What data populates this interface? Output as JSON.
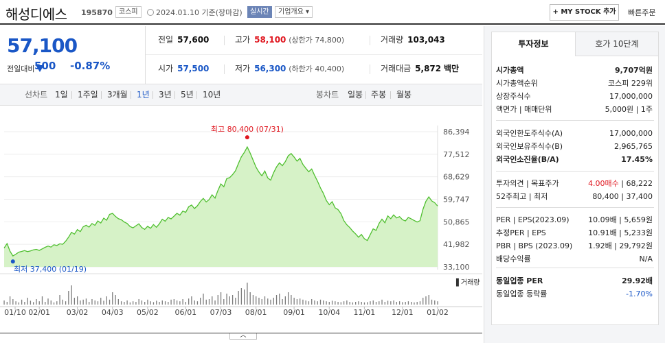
{
  "header": {
    "company_name": "해성디에스",
    "stock_code": "195870",
    "market_tag": "코스피",
    "date_text": "2024.01.10 기준(장마감)",
    "realtime_label": "실시간",
    "company_overview": "기업개요 ▾",
    "my_stock_button": "+ MY STOCK 추가",
    "quick_order": "빠른주문"
  },
  "price": {
    "current": "57,100",
    "change_label": "전일대비",
    "change_value": "500",
    "change_percent": "-0.87%",
    "direction": "down"
  },
  "stats": {
    "prev_close_label": "전일",
    "prev_close": "57,600",
    "high_label": "고가",
    "high": "58,100",
    "upper_limit": "(상한가 74,800)",
    "volume_label": "거래량",
    "volume": "103,043",
    "open_label": "시가",
    "open": "57,500",
    "low_label": "저가",
    "low": "56,300",
    "lower_limit": "(하한가 40,400)",
    "value_label": "거래대금",
    "value": "5,872",
    "value_unit": "백만"
  },
  "tabs": {
    "line_label": "선차트",
    "line_periods": [
      "1일",
      "1주일",
      "3개월",
      "1년",
      "3년",
      "5년",
      "10년"
    ],
    "active_period": "1년",
    "candle_label": "봉차트",
    "candle_periods": [
      "일봉",
      "주봉",
      "월봉"
    ]
  },
  "chart_data": {
    "type": "area",
    "y_ticks": [
      "86,394",
      "77,512",
      "68,629",
      "59,747",
      "50,865",
      "41,982",
      "33,100"
    ],
    "ylim": [
      33100,
      86394
    ],
    "x_ticks": [
      "01/10",
      "02/01",
      "03/02",
      "04/03",
      "05/02",
      "06/01",
      "07/03",
      "08/01",
      "09/01",
      "10/04",
      "11/01",
      "12/01",
      "01/02"
    ],
    "max_annotation": "최고 80,400 (07/31)",
    "min_annotation": "최저 37,400 (01/19)",
    "volume_label": "거래량",
    "color": "#4fbf2f",
    "fill_color": "#d6f2c7",
    "values": [
      40500,
      42300,
      39300,
      37400,
      38100,
      38900,
      39200,
      39500,
      39100,
      39400,
      39800,
      40000,
      39600,
      40200,
      40800,
      41300,
      40900,
      41800,
      41500,
      42200,
      42000,
      43200,
      44800,
      46700,
      46000,
      47800,
      47000,
      48900,
      49500,
      48800,
      50200,
      49500,
      51200,
      50400,
      52300,
      51500,
      53800,
      54200,
      53000,
      52100,
      51700,
      50800,
      50200,
      49000,
      48500,
      49300,
      50100,
      48600,
      47900,
      49100,
      48300,
      49800,
      48700,
      50100,
      51900,
      51100,
      52600,
      52000,
      53100,
      54200,
      53500,
      55100,
      54600,
      56800,
      57500,
      56100,
      57200,
      58900,
      60100,
      58700,
      59600,
      61500,
      60200,
      63200,
      65800,
      64700,
      67900,
      68300,
      69500,
      71000,
      73900,
      76500,
      78200,
      80400,
      78000,
      75200,
      72400,
      70500,
      69000,
      70900,
      68200,
      67300,
      70200,
      72500,
      74100,
      73000,
      74600,
      76900,
      77800,
      76400,
      74800,
      75900,
      73500,
      72000,
      70600,
      71700,
      69200,
      66900,
      64200,
      62100,
      59300,
      57600,
      58800,
      56400,
      55700,
      54100,
      51300,
      49700,
      48600,
      47200,
      46100,
      44800,
      45900,
      44200,
      43500,
      45800,
      48100,
      47500,
      50200,
      51900,
      50500,
      53200,
      52100,
      53600,
      52400,
      52900,
      51700,
      51200,
      52600,
      52000,
      51400,
      50800,
      51300,
      55800,
      58900,
      60700,
      59100,
      58400,
      57100
    ],
    "volume_heights": [
      0.15,
      0.1,
      0.3,
      0.2,
      0.12,
      0.08,
      0.18,
      0.1,
      0.25,
      0.14,
      0.09,
      0.2,
      0.12,
      0.3,
      0.1,
      0.22,
      0.15,
      0.08,
      0.12,
      0.35,
      0.18,
      0.12,
      0.5,
      0.7,
      0.25,
      0.3,
      0.15,
      0.18,
      0.22,
      0.1,
      0.2,
      0.15,
      0.12,
      0.25,
      0.14,
      0.3,
      0.18,
      0.45,
      0.35,
      0.2,
      0.12,
      0.1,
      0.15,
      0.08,
      0.12,
      0.1,
      0.2,
      0.15,
      0.1,
      0.18,
      0.12,
      0.09,
      0.14,
      0.1,
      0.15,
      0.12,
      0.1,
      0.18,
      0.2,
      0.15,
      0.12,
      0.2,
      0.1,
      0.22,
      0.3,
      0.15,
      0.12,
      0.25,
      0.4,
      0.18,
      0.2,
      0.3,
      0.15,
      0.35,
      0.45,
      0.2,
      0.4,
      0.3,
      0.35,
      0.25,
      0.5,
      0.6,
      0.55,
      0.8,
      0.45,
      0.35,
      0.3,
      0.25,
      0.2,
      0.3,
      0.22,
      0.18,
      0.25,
      0.35,
      0.4,
      0.2,
      0.3,
      0.45,
      0.35,
      0.25,
      0.2,
      0.22,
      0.18,
      0.15,
      0.12,
      0.2,
      0.15,
      0.12,
      0.18,
      0.15,
      0.12,
      0.1,
      0.14,
      0.12,
      0.1,
      0.09,
      0.12,
      0.15,
      0.1,
      0.08,
      0.1,
      0.12,
      0.1,
      0.08,
      0.09,
      0.12,
      0.15,
      0.1,
      0.12,
      0.18,
      0.1,
      0.14,
      0.12,
      0.15,
      0.1,
      0.12,
      0.09,
      0.1,
      0.12,
      0.1,
      0.08,
      0.1,
      0.12,
      0.25,
      0.3,
      0.35,
      0.18,
      0.15,
      0.12
    ]
  },
  "info_panel": {
    "tab_active": "투자정보",
    "tab_other": "호가 10단계",
    "rows": [
      {
        "k": "시가총액",
        "v": "9,707억원",
        "bold": true
      },
      {
        "k": "시가총액순위",
        "v": "코스피 229위"
      },
      {
        "k": "상장주식수",
        "v": "17,000,000"
      },
      {
        "k": "액면가 | 매매단위",
        "v": "5,000원 | 1주"
      },
      {
        "k": "외국인한도주식수(A)",
        "v": "17,000,000"
      },
      {
        "k": "외국인보유주식수(B)",
        "v": "2,965,765"
      },
      {
        "k": "외국인소진율(B/A)",
        "v": "17.45%",
        "bold": true
      },
      {
        "k": "투자의견 | 목표주가",
        "v_red": "4.00매수",
        "v": " | 68,222"
      },
      {
        "k": "52주최고 | 최저",
        "v": "80,400 | 37,400"
      },
      {
        "k": "PER | EPS(2023.09)",
        "v": "10.09배 | 5,659원"
      },
      {
        "k": "추정PER | EPS",
        "v": "10.91배 | 5,233원"
      },
      {
        "k": "PBR | BPS (2023.09)",
        "v": "1.92배 | 29,792원"
      },
      {
        "k": "배당수익률",
        "v": "N/A"
      },
      {
        "k": "동일업종 PER",
        "v": "29.92배",
        "bold": true
      },
      {
        "k": "동일업종 등락률",
        "v": "-1.70%"
      }
    ]
  }
}
